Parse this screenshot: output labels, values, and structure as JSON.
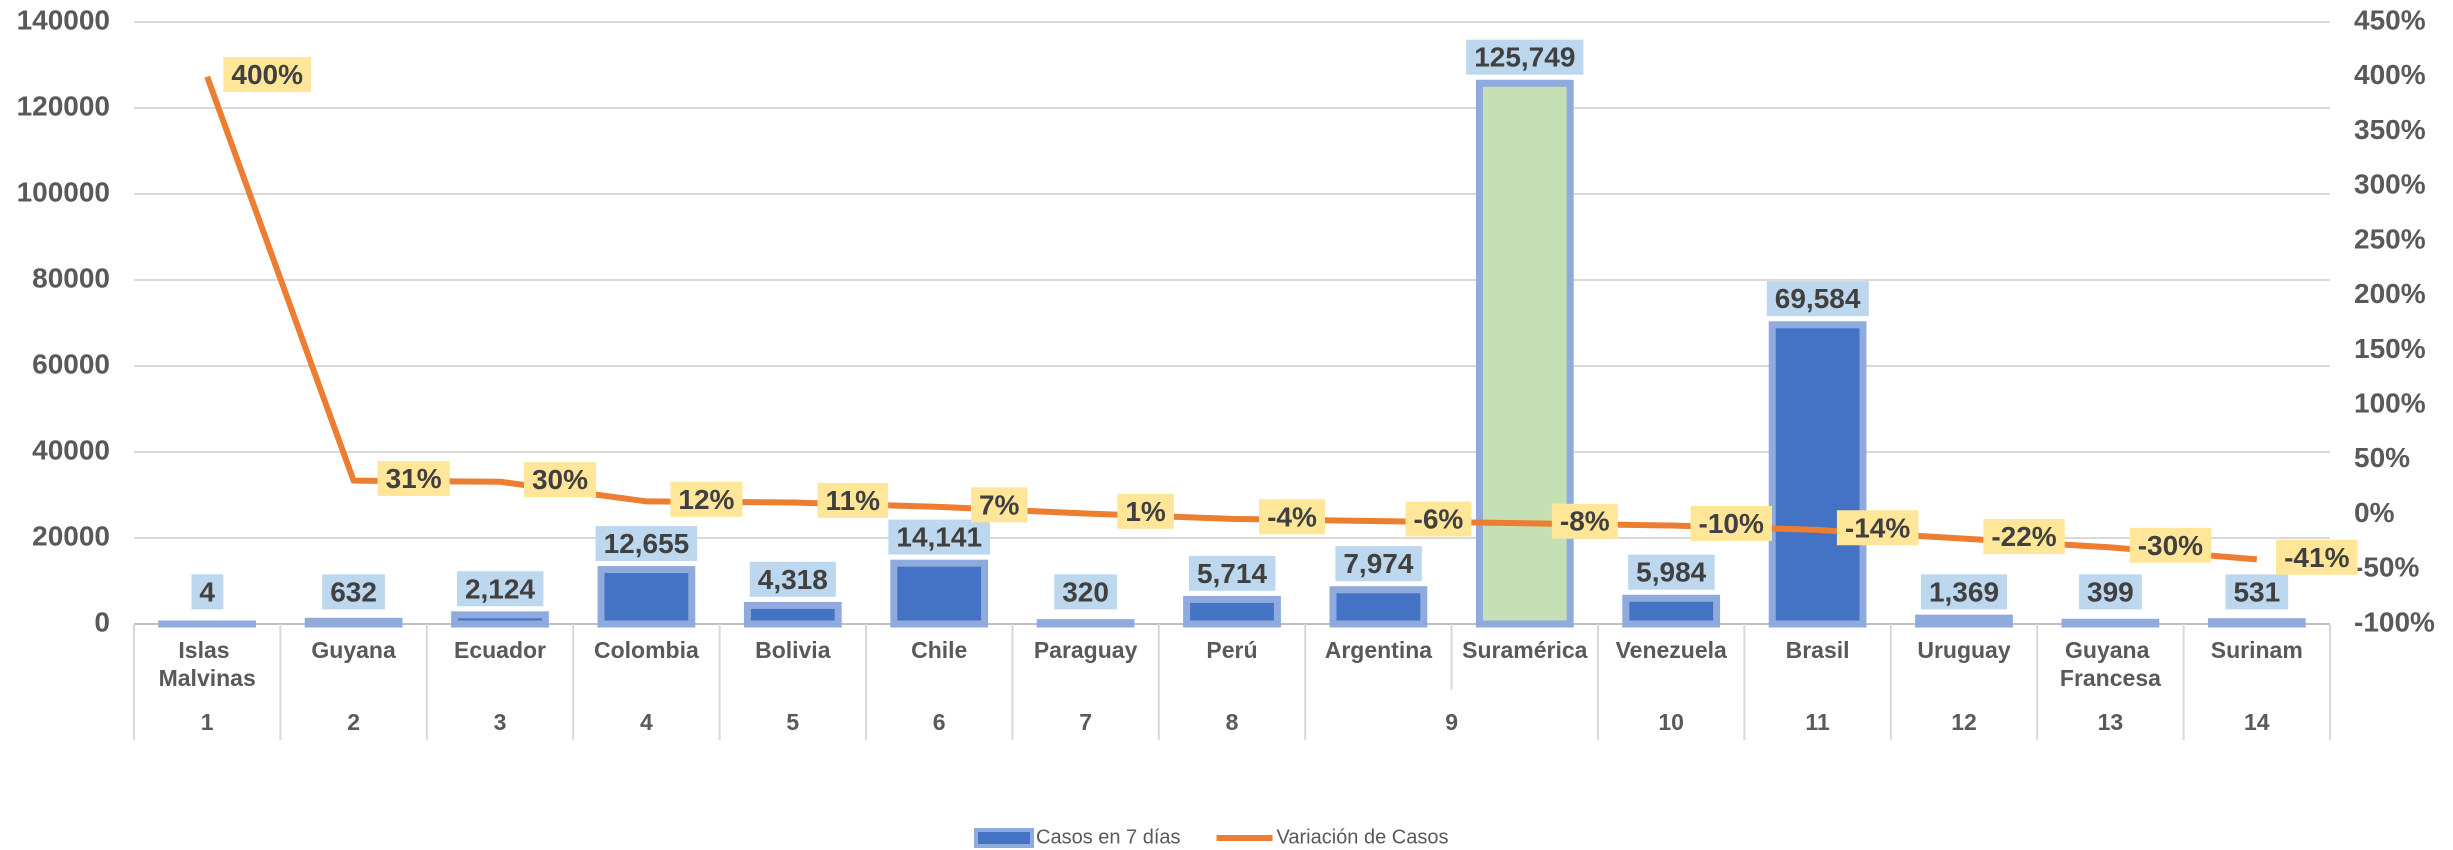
{
  "chart_data": {
    "type": "bar_line",
    "category_groups": [
      {
        "label": "1",
        "categories": [
          "Islas Malvinas"
        ]
      },
      {
        "label": "2",
        "categories": [
          "Guyana"
        ]
      },
      {
        "label": "3",
        "categories": [
          "Ecuador"
        ]
      },
      {
        "label": "4",
        "categories": [
          "Colombia"
        ]
      },
      {
        "label": "5",
        "categories": [
          "Bolivia"
        ]
      },
      {
        "label": "6",
        "categories": [
          "Chile"
        ]
      },
      {
        "label": "7",
        "categories": [
          "Paraguay"
        ]
      },
      {
        "label": "8",
        "categories": [
          "Perú"
        ]
      },
      {
        "label": "9",
        "categories": [
          "Argentina",
          "Suramérica"
        ]
      },
      {
        "label": "10",
        "categories": [
          "Venezuela"
        ]
      },
      {
        "label": "11",
        "categories": [
          "Brasil"
        ]
      },
      {
        "label": "12",
        "categories": [
          "Uruguay"
        ]
      },
      {
        "label": "13",
        "categories": [
          "Guyana Francesa"
        ]
      },
      {
        "label": "14",
        "categories": [
          "Surinam"
        ]
      }
    ],
    "series": [
      {
        "name": "Casos en 7 días",
        "type": "bar",
        "color": "#4472c4",
        "colors": [
          "#4472c4",
          "#4472c4",
          "#4472c4",
          "#4472c4",
          "#4472c4",
          "#4472c4",
          "#4472c4",
          "#4472c4",
          "#4472c4",
          "#c5e0b4",
          "#4472c4",
          "#4472c4",
          "#4472c4",
          "#4472c4",
          "#4472c4"
        ],
        "values": [
          4,
          632,
          2124,
          12655,
          4318,
          14141,
          320,
          5714,
          7974,
          125749,
          5984,
          69584,
          1369,
          399,
          531
        ],
        "value_labels": [
          "4",
          "632",
          "2,124",
          "12,655",
          "4,318",
          "14,141",
          "320",
          "5,714",
          "7,974",
          "125,749",
          "5,984",
          "69,584",
          "1,369",
          "399",
          "531"
        ]
      },
      {
        "name": "Variación de Casos",
        "type": "line",
        "axis": "y2",
        "color": "#ed7d31",
        "values": [
          400,
          31,
          30,
          12,
          11,
          7,
          1,
          -4,
          -6,
          -8,
          -10,
          -14,
          -22,
          -30,
          -41
        ],
        "value_labels": [
          "400%",
          "31%",
          "30%",
          "12%",
          "11%",
          "7%",
          "1%",
          "-4%",
          "-6%",
          "-8%",
          "-10%",
          "-14%",
          "-22%",
          "-30%",
          "-41%"
        ]
      }
    ],
    "ylim": [
      0,
      140000
    ],
    "yticks": [
      0,
      20000,
      40000,
      60000,
      80000,
      100000,
      120000,
      140000
    ],
    "y2lim": [
      -100,
      450
    ],
    "y2ticks": [
      {
        "value": -100,
        "label": "-100%"
      },
      {
        "value": -50,
        "label": "-50%"
      },
      {
        "value": 0,
        "label": "0%"
      },
      {
        "value": 50,
        "label": "50%"
      },
      {
        "value": 100,
        "label": "100%"
      },
      {
        "value": 150,
        "label": "150%"
      },
      {
        "value": 200,
        "label": "200%"
      },
      {
        "value": 250,
        "label": "250%"
      },
      {
        "value": 300,
        "label": "300%"
      },
      {
        "value": 350,
        "label": "350%"
      },
      {
        "value": 400,
        "label": "400%"
      },
      {
        "value": 450,
        "label": "450%"
      }
    ],
    "grid": true,
    "legend": "bottom"
  }
}
